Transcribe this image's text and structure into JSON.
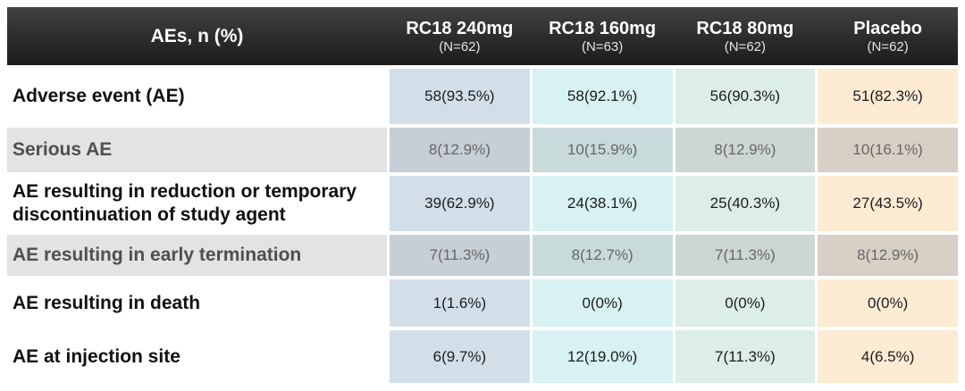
{
  "table": {
    "header": {
      "label": "AEs, n (%)",
      "columns": [
        {
          "name": "RC18 240mg",
          "n": "(N=62)"
        },
        {
          "name": "RC18 160mg",
          "n": "(N=63)"
        },
        {
          "name": "RC18 80mg",
          "n": "(N=62)"
        },
        {
          "name": "Placebo",
          "n": "(N=62)"
        }
      ]
    },
    "rows": [
      {
        "label": "Adverse event (AE)",
        "values": [
          "58(93.5%)",
          "58(92.1%)",
          "56(90.3%)",
          "51(82.3%)"
        ],
        "shaded": false
      },
      {
        "label": "Serious AE",
        "values": [
          "8(12.9%)",
          "10(15.9%)",
          "8(12.9%)",
          "10(16.1%)"
        ],
        "shaded": true
      },
      {
        "label": "AE resulting in reduction or temporary discontinuation of study agent",
        "values": [
          "39(62.9%)",
          "24(38.1%)",
          "25(40.3%)",
          "27(43.5%)"
        ],
        "shaded": false
      },
      {
        "label": "AE resulting in early termination",
        "values": [
          "7(11.3%)",
          "8(12.7%)",
          "7(11.3%)",
          "8(12.9%)"
        ],
        "shaded": true
      },
      {
        "label": "AE resulting in death",
        "values": [
          "1(1.6%)",
          "0(0%)",
          "0(0%)",
          "0(0%)"
        ],
        "shaded": false
      },
      {
        "label": "AE at injection site",
        "values": [
          "6(9.7%)",
          "12(19.0%)",
          "7(11.3%)",
          "4(6.5%)"
        ],
        "shaded": false
      }
    ]
  },
  "colors": {
    "header_bg_top": "#424242",
    "header_bg_bottom": "#1d1d1d",
    "col_rc18_240mg": "#d2dfe9",
    "col_rc18_160mg": "#d8f1f2",
    "col_rc18_80mg": "#dceee6",
    "col_placebo": "#fdebd4",
    "shaded_label_bg": "#e3e3e3"
  },
  "chart_data": {
    "type": "table",
    "title": "AEs, n (%)",
    "columns": [
      "AEs, n (%)",
      "RC18 240mg (N=62)",
      "RC18 160mg (N=63)",
      "RC18 80mg (N=62)",
      "Placebo (N=62)"
    ],
    "rows": [
      [
        "Adverse event (AE)",
        "58(93.5%)",
        "58(92.1%)",
        "56(90.3%)",
        "51(82.3%)"
      ],
      [
        "Serious AE",
        "8(12.9%)",
        "10(15.9%)",
        "8(12.9%)",
        "10(16.1%)"
      ],
      [
        "AE resulting in reduction or temporary discontinuation of study agent",
        "39(62.9%)",
        "24(38.1%)",
        "25(40.3%)",
        "27(43.5%)"
      ],
      [
        "AE resulting in early termination",
        "7(11.3%)",
        "8(12.7%)",
        "7(11.3%)",
        "8(12.9%)"
      ],
      [
        "AE resulting in death",
        "1(1.6%)",
        "0(0%)",
        "0(0%)",
        "0(0%)"
      ],
      [
        "AE at injection site",
        "6(9.7%)",
        "12(19.0%)",
        "7(11.3%)",
        "4(6.5%)"
      ]
    ]
  }
}
